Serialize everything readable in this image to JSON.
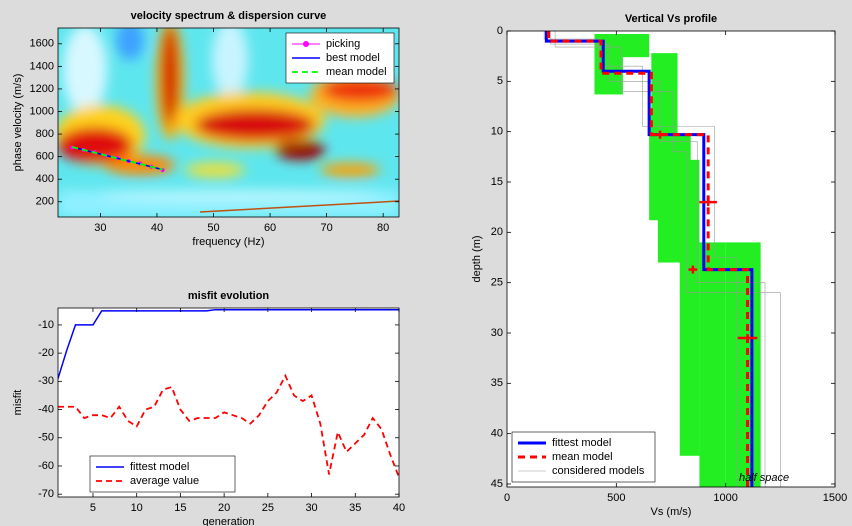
{
  "chart_data": [
    {
      "type": "spectrum",
      "title": "velocity spectrum & dispersion curve",
      "xlabel": "frequency (Hz)",
      "ylabel": "phase velocity (m/s)",
      "xlim": [
        22.5,
        82.8
      ],
      "xticks": [
        30,
        40,
        50,
        60,
        70,
        80
      ],
      "ylim": [
        65,
        1740
      ],
      "yticks": [
        200,
        400,
        600,
        800,
        1000,
        1200,
        1400,
        1600
      ],
      "legend": "top-right",
      "x": [
        25,
        27,
        29,
        31,
        33,
        35,
        37,
        39,
        41
      ],
      "series": [
        {
          "name": "picking",
          "color": "#ff00ff",
          "style": "markers",
          "values": [
            680,
            660,
            640,
            610,
            590,
            560,
            540,
            510,
            480
          ]
        },
        {
          "name": "best model",
          "color": "#0000ff",
          "style": "solid",
          "values": [
            685,
            660,
            635,
            610,
            585,
            560,
            535,
            510,
            485
          ]
        },
        {
          "name": "mean model",
          "color": "#00ff00",
          "style": "dashed",
          "values": [
            685,
            660,
            635,
            610,
            585,
            560,
            535,
            510,
            485
          ]
        }
      ]
    },
    {
      "type": "line",
      "title": "misfit evolution",
      "xlabel": "generation",
      "ylabel": "misfit",
      "xlim": [
        1,
        40
      ],
      "xticks": [
        5,
        10,
        15,
        20,
        25,
        30,
        35,
        40
      ],
      "ylim": [
        -71,
        -4
      ],
      "yticks": [
        -10,
        -20,
        -30,
        -40,
        -50,
        -60,
        -70
      ],
      "legend": "bottom-left",
      "x": [
        1,
        2,
        3,
        4,
        5,
        6,
        7,
        8,
        9,
        10,
        11,
        12,
        13,
        14,
        15,
        16,
        17,
        18,
        19,
        20,
        21,
        22,
        23,
        24,
        25,
        26,
        27,
        28,
        29,
        30,
        31,
        32,
        33,
        34,
        35,
        36,
        37,
        38,
        39,
        40
      ],
      "series": [
        {
          "name": "fittest model",
          "color": "#0000ff",
          "style": "solid",
          "values": [
            -29,
            -19,
            -10,
            -10,
            -10,
            -5,
            -5,
            -5,
            -5,
            -5,
            -5,
            -5,
            -5,
            -5,
            -5,
            -5,
            -5,
            -5,
            -4.6,
            -4.6,
            -4.6,
            -4.6,
            -4.6,
            -4.6,
            -4.6,
            -4.6,
            -4.6,
            -4.6,
            -4.6,
            -4.6,
            -4.6,
            -4.6,
            -4.6,
            -4.6,
            -4.6,
            -4.6,
            -4.6,
            -4.6,
            -4.6,
            -4.6
          ]
        },
        {
          "name": "average value",
          "color": "#ff0000",
          "style": "dashed",
          "values": [
            -39,
            -39,
            -39,
            -43,
            -42,
            -42,
            -43,
            -39,
            -44,
            -46,
            -40,
            -39,
            -33,
            -32,
            -40,
            -44,
            -43,
            -43,
            -43,
            -41,
            -42,
            -43,
            -45,
            -42,
            -37,
            -34,
            -28,
            -35,
            -37,
            -35,
            -45,
            -63,
            -48,
            -55,
            -52,
            -49,
            -43,
            -47,
            -56,
            -64
          ]
        }
      ]
    },
    {
      "type": "profile",
      "title": "Vertical Vs profile",
      "xlabel": "Vs (m/s)",
      "ylabel": "depth (m)",
      "xlim": [
        0,
        1500
      ],
      "xticks": [
        0,
        500,
        1000,
        1500
      ],
      "ylim": [
        0,
        45.3
      ],
      "yticks": [
        0,
        5,
        10,
        15,
        20,
        25,
        30,
        35,
        40,
        45
      ],
      "y_reversed": true,
      "legend": "bottom-left",
      "annotation": "half space",
      "ranges": [
        {
          "vs": [
            400,
            530
          ],
          "depth": [
            0.3,
            6.3
          ]
        },
        {
          "vs": [
            520,
            650
          ],
          "depth": [
            0.3,
            2.6
          ]
        },
        {
          "vs": [
            660,
            780
          ],
          "depth": [
            2.2,
            10.5
          ]
        },
        {
          "vs": [
            650,
            700
          ],
          "depth": [
            8.2,
            18.8
          ]
        },
        {
          "vs": [
            690,
            840
          ],
          "depth": [
            10.3,
            23
          ]
        },
        {
          "vs": [
            790,
            880
          ],
          "depth": [
            12.8,
            42.2
          ]
        },
        {
          "vs": [
            880,
            1000
          ],
          "depth": [
            21,
            45.3
          ]
        },
        {
          "vs": [
            1000,
            1160
          ],
          "depth": [
            21,
            45.3
          ]
        }
      ],
      "series": [
        {
          "name": "considered models",
          "color": "#9a9a9a",
          "style": "thin",
          "x": [
            200,
            200,
            470,
            470,
            700,
            700,
            870,
            870,
            1180,
            1180
          ],
          "values": [
            0,
            1.3,
            1.3,
            5,
            5,
            11,
            11,
            25,
            25,
            45.3
          ]
        },
        {
          "name": "considered models",
          "color": "#9a9a9a",
          "style": "thin",
          "x": [
            170,
            170,
            420,
            420,
            620,
            620,
            950,
            950,
            1050,
            1050
          ],
          "values": [
            0,
            0.8,
            0.8,
            3.5,
            3.5,
            9.5,
            9.5,
            22.5,
            22.5,
            45.3
          ]
        },
        {
          "name": "considered models",
          "color": "#9a9a9a",
          "style": "thin",
          "x": [
            220,
            220,
            520,
            520,
            760,
            760,
            820,
            820,
            1250,
            1250
          ],
          "values": [
            0,
            1.6,
            1.6,
            6,
            6,
            12,
            12,
            26,
            26,
            45.3
          ]
        },
        {
          "name": "fittest model",
          "color": "#0000ff",
          "style": "thick",
          "x": [
            180,
            180,
            440,
            440,
            650,
            650,
            900,
            900,
            1120,
            1120
          ],
          "values": [
            0,
            1,
            1,
            4,
            4,
            10.3,
            10.3,
            23.7,
            23.7,
            45.3
          ]
        },
        {
          "name": "mean model",
          "color": "#ff0000",
          "style": "dashed-thick",
          "x": [
            190,
            190,
            430,
            430,
            660,
            660,
            920,
            920,
            1100,
            1100
          ],
          "values": [
            0,
            1,
            1,
            4.2,
            4.2,
            10.3,
            10.3,
            23.7,
            23.7,
            45.3
          ]
        }
      ],
      "errors": [
        {
          "vs": 700,
          "depth": 10.3,
          "err": 25
        },
        {
          "vs": 920,
          "depth": 17,
          "err": 40
        },
        {
          "vs": 850,
          "depth": 23.7,
          "err": 20
        },
        {
          "vs": 1100,
          "depth": 30.5,
          "err": 45
        }
      ]
    }
  ]
}
